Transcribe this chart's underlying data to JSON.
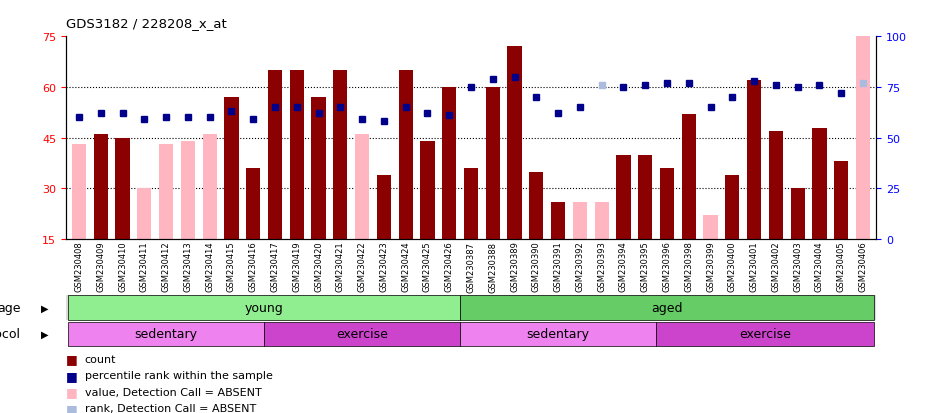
{
  "title": "GDS3182 / 228208_x_at",
  "samples": [
    "GSM230408",
    "GSM230409",
    "GSM230410",
    "GSM230411",
    "GSM230412",
    "GSM230413",
    "GSM230414",
    "GSM230415",
    "GSM230416",
    "GSM230417",
    "GSM230419",
    "GSM230420",
    "GSM230421",
    "GSM230422",
    "GSM230423",
    "GSM230424",
    "GSM230425",
    "GSM230426",
    "GSM230387",
    "GSM230388",
    "GSM230389",
    "GSM230390",
    "GSM230391",
    "GSM230392",
    "GSM230393",
    "GSM230394",
    "GSM230395",
    "GSM230396",
    "GSM230398",
    "GSM230399",
    "GSM230400",
    "GSM230401",
    "GSM230402",
    "GSM230403",
    "GSM230404",
    "GSM230405",
    "GSM230406"
  ],
  "values": [
    43,
    46,
    45,
    30,
    43,
    44,
    46,
    57,
    36,
    65,
    65,
    57,
    65,
    46,
    34,
    65,
    44,
    60,
    36,
    60,
    72,
    35,
    26,
    26,
    26,
    40,
    40,
    36,
    52,
    22,
    34,
    62,
    47,
    30,
    48,
    38,
    75
  ],
  "absent_flags": [
    true,
    false,
    false,
    true,
    true,
    true,
    true,
    false,
    false,
    false,
    false,
    false,
    false,
    true,
    false,
    false,
    false,
    false,
    false,
    false,
    false,
    false,
    false,
    true,
    true,
    false,
    false,
    false,
    false,
    true,
    false,
    false,
    false,
    false,
    false,
    false,
    true
  ],
  "ranks": [
    60,
    62,
    62,
    59,
    60,
    60,
    60,
    63,
    59,
    65,
    65,
    62,
    65,
    59,
    58,
    65,
    62,
    61,
    75,
    79,
    80,
    70,
    62,
    65,
    76,
    75,
    76,
    77,
    77,
    65,
    70,
    78,
    76,
    75,
    76,
    72,
    77
  ],
  "rank_absent_flags": [
    false,
    false,
    false,
    false,
    false,
    false,
    false,
    false,
    false,
    false,
    false,
    false,
    false,
    false,
    false,
    false,
    false,
    false,
    false,
    false,
    false,
    false,
    false,
    false,
    true,
    false,
    false,
    false,
    false,
    false,
    false,
    false,
    false,
    false,
    false,
    false,
    true
  ],
  "age_groups": [
    {
      "label": "young",
      "start": 0,
      "end": 18,
      "color": "#90EE90"
    },
    {
      "label": "aged",
      "start": 18,
      "end": 37,
      "color": "#66CC66"
    }
  ],
  "protocol_groups": [
    {
      "label": "sedentary",
      "start": 0,
      "end": 9,
      "color": "#EE82EE"
    },
    {
      "label": "exercise",
      "start": 9,
      "end": 18,
      "color": "#CC44CC"
    },
    {
      "label": "sedentary",
      "start": 18,
      "end": 27,
      "color": "#EE82EE"
    },
    {
      "label": "exercise",
      "start": 27,
      "end": 37,
      "color": "#CC44CC"
    }
  ],
  "bar_color_present": "#8B0000",
  "bar_color_absent": "#FFB6C1",
  "rank_color_present": "#00008B",
  "rank_color_absent": "#AABBDD",
  "ylim_left": [
    15,
    75
  ],
  "ylim_right": [
    0,
    100
  ],
  "yticks_left": [
    15,
    30,
    45,
    60,
    75
  ],
  "yticks_right": [
    0,
    25,
    50,
    75,
    100
  ],
  "hlines": [
    30,
    45,
    60
  ],
  "bg_color": "#DCDCDC",
  "plot_bg": "#FFFFFF"
}
